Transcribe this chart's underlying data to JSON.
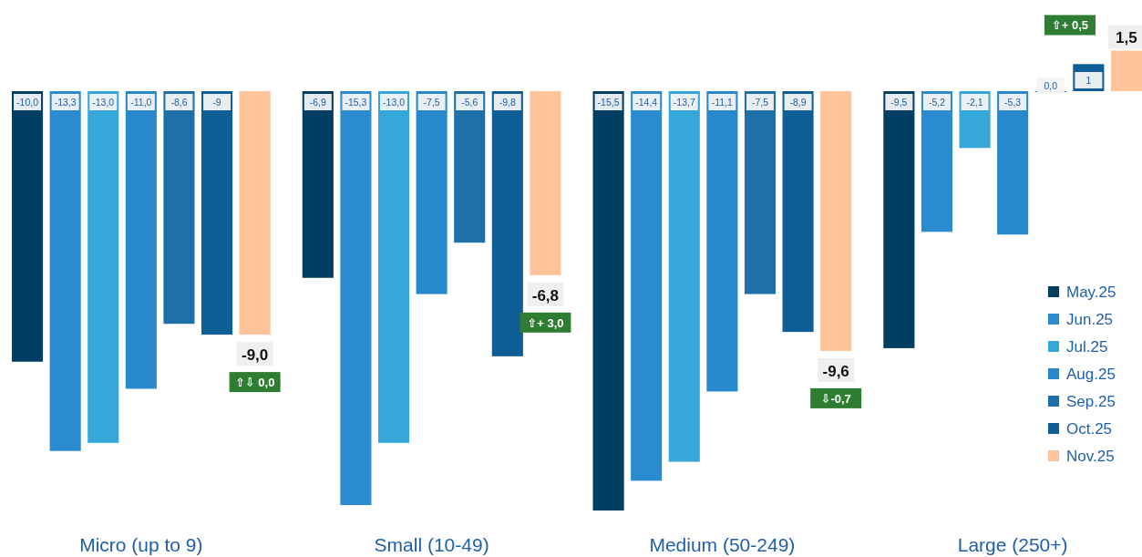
{
  "chart_data": {
    "type": "bar",
    "categories": [
      "Micro (up to 9)",
      "Small (10-49)",
      "Medium (50-249)",
      "Large (250+)"
    ],
    "tick_labels": "x",
    "legend": "bottom right",
    "series": [
      {
        "name": "May.25",
        "color": "#003f63",
        "values": [
          -10.0,
          -6.9,
          -15.5,
          -9.5
        ],
        "value_labels": [
          "-10,0",
          "-6,9",
          "-15,5",
          "-9,5"
        ]
      },
      {
        "name": "Jun.25",
        "color": "#2a8ccf",
        "values": [
          -13.3,
          -15.3,
          -14.4,
          -5.2
        ],
        "value_labels": [
          "-13,3",
          "-15,3",
          "-14,4",
          "-5,2"
        ]
      },
      {
        "name": "Jul.25",
        "color": "#35a7d8",
        "values": [
          -13.0,
          -13.0,
          -13.7,
          -2.1
        ],
        "value_labels": [
          "-13,0",
          "-13,0",
          "-13,7",
          "-2,1"
        ]
      },
      {
        "name": "Aug.25",
        "color": "#2788cb",
        "values": [
          -11.0,
          -7.5,
          -11.1,
          -5.3
        ],
        "value_labels": [
          "-11,0",
          "-7,5",
          "-11,1",
          "-5,3"
        ]
      },
      {
        "name": "Sep.25",
        "color": "#1f70a8",
        "values": [
          -8.6,
          -5.6,
          -7.5,
          0.0
        ],
        "value_labels": [
          "-8,6",
          "-5,6",
          "-7,5",
          "0,0"
        ]
      },
      {
        "name": "Oct.25",
        "color": "#0f5e96",
        "values": [
          -9,
          -9.8,
          -8.9,
          1
        ],
        "value_labels": [
          "-9",
          "-9,8",
          "-8,9",
          "1"
        ]
      },
      {
        "name": "Nov.25",
        "color": "#ffc399",
        "values": [
          -9.0,
          -6.8,
          -9.6,
          1.5
        ],
        "value_labels": [
          "-9,0",
          "-6,8",
          "-9,6",
          "1,5"
        ]
      }
    ],
    "annotations": [
      "⇧⇩ 0,0",
      "⇧+ 3,0",
      "⇩-0,7",
      "⇧+ 0,5"
    ]
  }
}
